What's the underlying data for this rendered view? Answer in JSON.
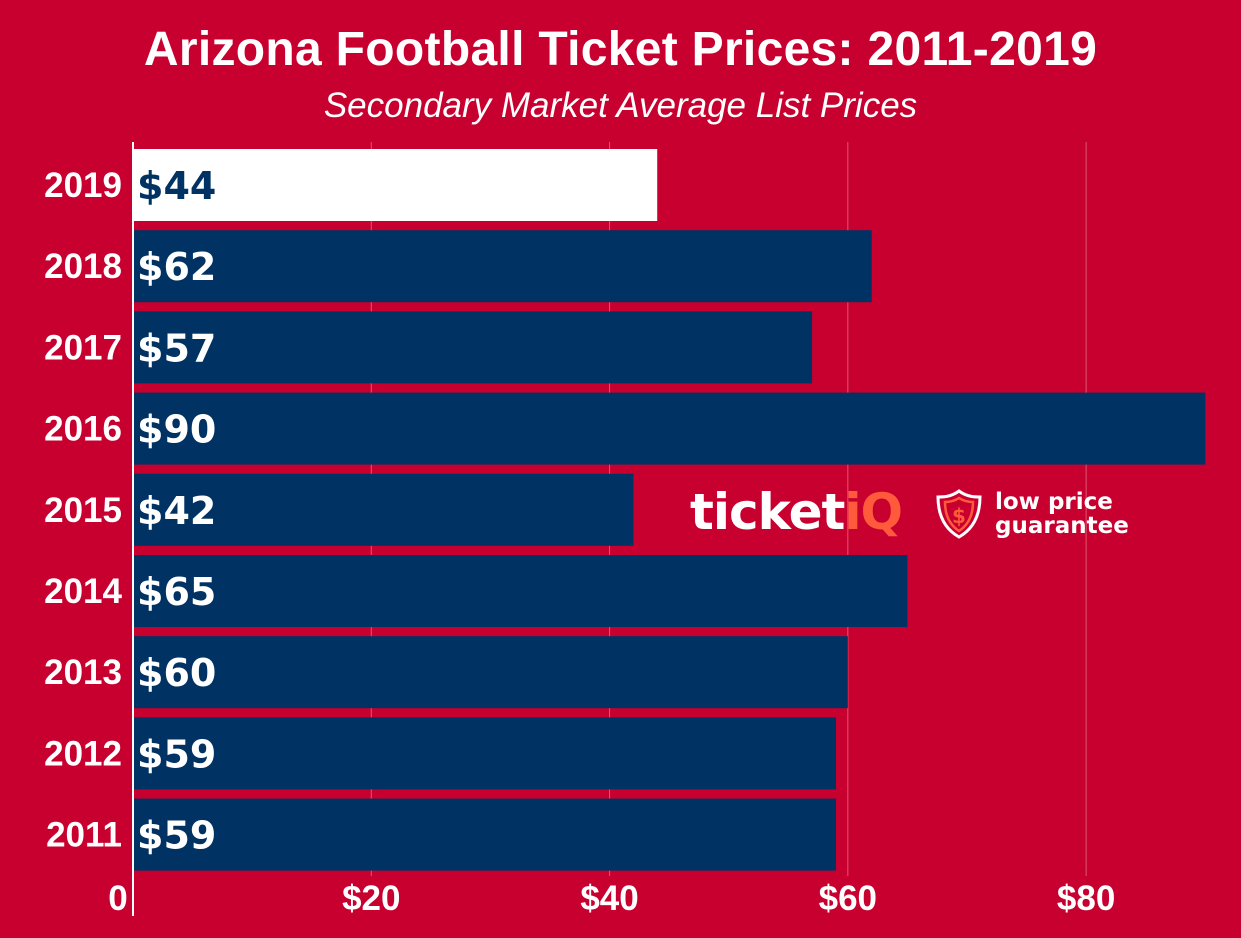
{
  "chart_data": {
    "type": "bar",
    "orientation": "horizontal",
    "title": "Arizona Football Ticket Prices: 2011-2019",
    "subtitle": "Secondary Market Average List Prices",
    "categories": [
      "2019",
      "2018",
      "2017",
      "2016",
      "2015",
      "2014",
      "2013",
      "2012",
      "2011"
    ],
    "values": [
      44,
      62,
      57,
      90,
      42,
      65,
      60,
      59,
      59
    ],
    "value_labels": [
      "$44",
      "$62",
      "$57",
      "$90",
      "$42",
      "$65",
      "$60",
      "$59",
      "$59"
    ],
    "highlight_category": "2019",
    "xticks": [
      0,
      20,
      40,
      60,
      80
    ],
    "xtick_labels": [
      "0",
      "$20",
      "$40",
      "$60",
      "$80"
    ],
    "xlim": [
      0,
      93
    ],
    "grid": true,
    "colors": {
      "background": "#c8002f",
      "bar": "#003263",
      "highlight_bar": "#ffffff",
      "label_on_bar": "#ffffff",
      "label_on_highlight": "#003263",
      "accent": "#ff5a3c"
    }
  },
  "logo": {
    "brand_prefix": "ticket",
    "brand_suffix": "iQ",
    "tagline_line1": "low price",
    "tagline_line2": "guarantee",
    "icon": "shield-dollar-icon"
  }
}
